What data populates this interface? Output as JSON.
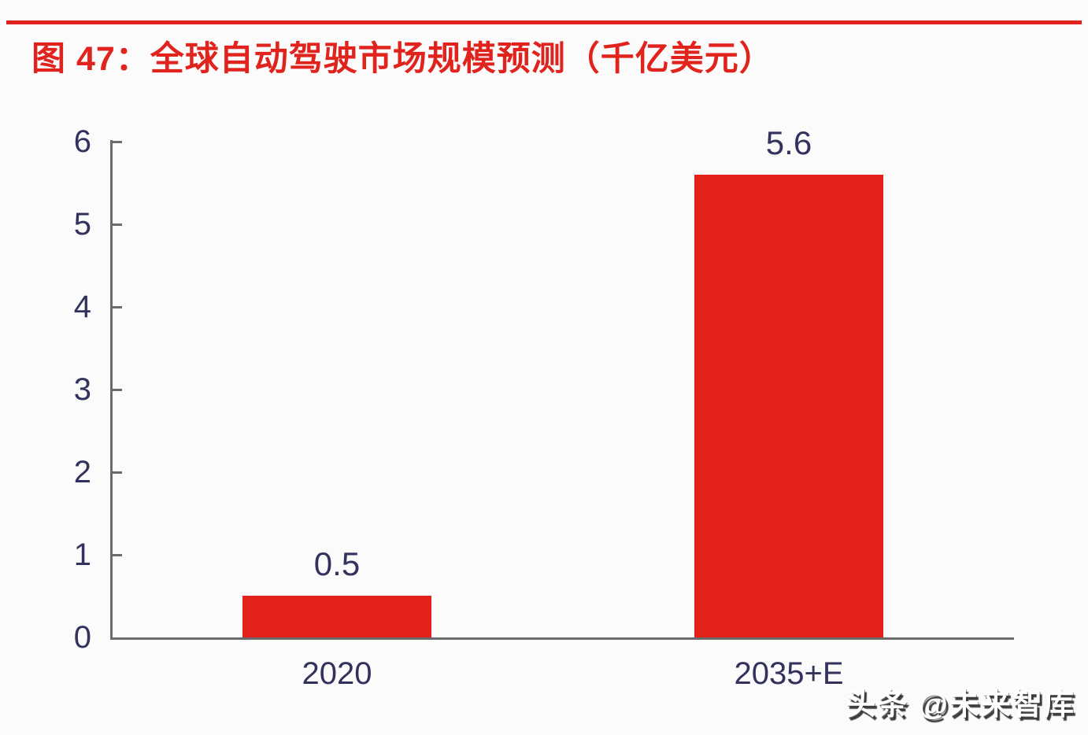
{
  "page": {
    "background": "#FBFBFC",
    "accent_red": "#E2211B",
    "text_navy": "#32325C",
    "axis_gray": "#6B6B6B"
  },
  "header": {
    "title": "图 47：全球自动驾驶市场规模预测（千亿美元）"
  },
  "chart_data": {
    "type": "bar",
    "title": "图 47：全球自动驾驶市场规模预测（千亿美元）",
    "categories": [
      "2020",
      "2035+E"
    ],
    "values": [
      0.5,
      5.6
    ],
    "data_labels": [
      "0.5",
      "5.6"
    ],
    "bar_color": "#E2211B",
    "xlabel": "",
    "ylabel": "",
    "ylim": [
      0,
      6
    ],
    "yticks": [
      0,
      1,
      2,
      3,
      4,
      5,
      6
    ],
    "grid": false,
    "legend": false,
    "data_label_position": "above-bar",
    "tick_label_color": "#32325C"
  },
  "watermark": {
    "text": "头条 @未来智库"
  }
}
